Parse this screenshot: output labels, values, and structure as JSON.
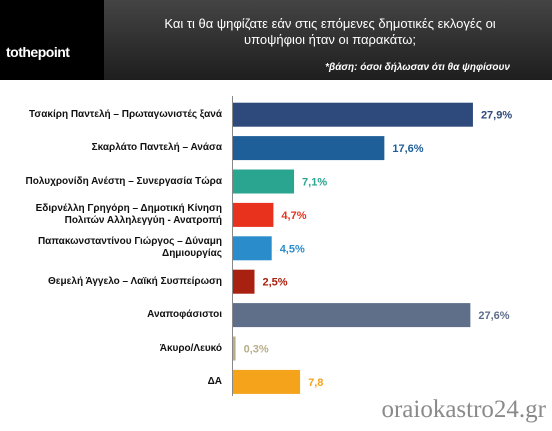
{
  "header": {
    "logo": "tothepoint"
  },
  "chart_data": {
    "type": "bar",
    "orientation": "horizontal",
    "title": "Και τι θα ψηφίζατε εάν στις επόμενες δημοτικές εκλογές οι υποψήφιοι ήταν οι παρακάτω;",
    "subtitle": "*βάση: όσοι δήλωσαν ότι θα ψηφίσουν",
    "categories": [
      "Τσακίρη Παντελή – Πρωταγωνιστές ξανά",
      "Σκαρλάτο Παντελή – Ανάσα",
      "Πολυχρονίδη Ανέστη – Συνεργασία Τώρα",
      "Εδιρνέλλη Γρηγόρη – Δημοτική Κίνηση Πολιτών Αλληλεγγύη - Ανατροπή",
      "Παπακωνσταντίνου Γιώργος – Δύναμη Δημιουργίας",
      "Θεμελή Άγγελο – Λαϊκή Συσπείρωση",
      "Αναποφάσιστοι",
      "Άκυρο/Λευκό",
      "ΔΑ"
    ],
    "values": [
      27.9,
      17.6,
      7.1,
      4.7,
      4.5,
      2.5,
      27.6,
      0.3,
      7.8
    ],
    "value_labels": [
      "27,9%",
      "17,6%",
      "7,1%",
      "4,7%",
      "4,5%",
      "2,5%",
      "27,6%",
      "0,3%",
      "7,8"
    ],
    "colors": [
      "#2e4a7d",
      "#1f5f99",
      "#2aa58f",
      "#e8321e",
      "#2a8ccb",
      "#a8200f",
      "#5f6f8a",
      "#b8ae8a",
      "#f5a31a"
    ]
  },
  "watermark": "oraiokastro24.gr"
}
